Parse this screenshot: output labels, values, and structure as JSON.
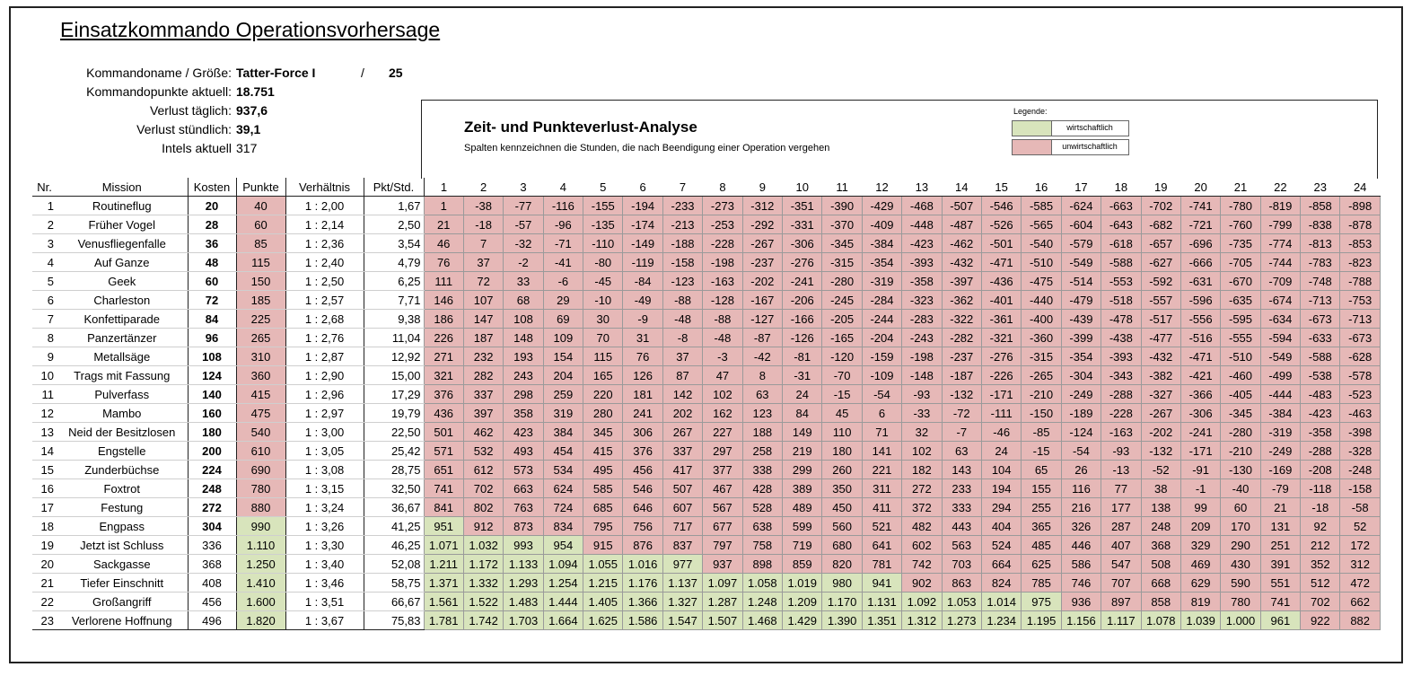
{
  "title": "Einsatzkommando Operationsvorhersage",
  "info": {
    "rows": [
      {
        "label": "Kommandoname / Größe:",
        "value": "Tatter-Force I"
      },
      {
        "label": "Kommandopunkte aktuell:",
        "value": "18.751"
      },
      {
        "label": "Verlust täglich:",
        "value": "937,6"
      },
      {
        "label": "Verlust stündlich:",
        "value": "39,1"
      },
      {
        "label": "Intels aktuell",
        "value": "317"
      }
    ],
    "slash": "/",
    "size": "25"
  },
  "analysis": {
    "title": "Zeit- und Punkteverlust-Analyse",
    "subtitle": "Spalten kennzeichnen die Stunden, die nach Beendigung einer Operation vergehen",
    "legend_title": "Legende:",
    "legend_items": [
      {
        "label": "wirtschaftlich",
        "color": "#d8e4bc"
      },
      {
        "label": "unwirtschaftlich",
        "color": "#e6b8b7"
      }
    ]
  },
  "colors": {
    "red": "#e6b8b7",
    "green": "#d8e4bc"
  },
  "table": {
    "headers": [
      "Nr.",
      "Mission",
      "Kosten",
      "Punkte",
      "Verhältnis",
      "Pkt/Std."
    ],
    "hours": [
      "1",
      "2",
      "3",
      "4",
      "5",
      "6",
      "7",
      "8",
      "9",
      "10",
      "11",
      "12",
      "13",
      "14",
      "15",
      "16",
      "17",
      "18",
      "19",
      "20",
      "21",
      "22",
      "23",
      "24"
    ],
    "rows": [
      {
        "nr": "1",
        "mission": "Routineflug",
        "kosten": "20",
        "punkte": "40",
        "verhaeltnis": "1 : 2,00",
        "pph": "1,67",
        "hours": [
          "1",
          "-38",
          "-77",
          "-116",
          "-155",
          "-194",
          "-233",
          "-273",
          "-312",
          "-351",
          "-390",
          "-429",
          "-468",
          "-507",
          "-546",
          "-585",
          "-624",
          "-663",
          "-702",
          "-741",
          "-780",
          "-819",
          "-858",
          "-898"
        ],
        "green_count": 0
      },
      {
        "nr": "2",
        "mission": "Früher Vogel",
        "kosten": "28",
        "punkte": "60",
        "verhaeltnis": "1 : 2,14",
        "pph": "2,50",
        "hours": [
          "21",
          "-18",
          "-57",
          "-96",
          "-135",
          "-174",
          "-213",
          "-253",
          "-292",
          "-331",
          "-370",
          "-409",
          "-448",
          "-487",
          "-526",
          "-565",
          "-604",
          "-643",
          "-682",
          "-721",
          "-760",
          "-799",
          "-838",
          "-878"
        ],
        "green_count": 0
      },
      {
        "nr": "3",
        "mission": "Venusfliegenfalle",
        "kosten": "36",
        "punkte": "85",
        "verhaeltnis": "1 : 2,36",
        "pph": "3,54",
        "hours": [
          "46",
          "7",
          "-32",
          "-71",
          "-110",
          "-149",
          "-188",
          "-228",
          "-267",
          "-306",
          "-345",
          "-384",
          "-423",
          "-462",
          "-501",
          "-540",
          "-579",
          "-618",
          "-657",
          "-696",
          "-735",
          "-774",
          "-813",
          "-853"
        ],
        "green_count": 0
      },
      {
        "nr": "4",
        "mission": "Auf Ganze",
        "kosten": "48",
        "punkte": "115",
        "verhaeltnis": "1 : 2,40",
        "pph": "4,79",
        "hours": [
          "76",
          "37",
          "-2",
          "-41",
          "-80",
          "-119",
          "-158",
          "-198",
          "-237",
          "-276",
          "-315",
          "-354",
          "-393",
          "-432",
          "-471",
          "-510",
          "-549",
          "-588",
          "-627",
          "-666",
          "-705",
          "-744",
          "-783",
          "-823"
        ],
        "green_count": 0
      },
      {
        "nr": "5",
        "mission": "Geek",
        "kosten": "60",
        "punkte": "150",
        "verhaeltnis": "1 : 2,50",
        "pph": "6,25",
        "hours": [
          "111",
          "72",
          "33",
          "-6",
          "-45",
          "-84",
          "-123",
          "-163",
          "-202",
          "-241",
          "-280",
          "-319",
          "-358",
          "-397",
          "-436",
          "-475",
          "-514",
          "-553",
          "-592",
          "-631",
          "-670",
          "-709",
          "-748",
          "-788"
        ],
        "green_count": 0
      },
      {
        "nr": "6",
        "mission": "Charleston",
        "kosten": "72",
        "punkte": "185",
        "verhaeltnis": "1 : 2,57",
        "pph": "7,71",
        "hours": [
          "146",
          "107",
          "68",
          "29",
          "-10",
          "-49",
          "-88",
          "-128",
          "-167",
          "-206",
          "-245",
          "-284",
          "-323",
          "-362",
          "-401",
          "-440",
          "-479",
          "-518",
          "-557",
          "-596",
          "-635",
          "-674",
          "-713",
          "-753"
        ],
        "green_count": 0
      },
      {
        "nr": "7",
        "mission": "Konfettiparade",
        "kosten": "84",
        "punkte": "225",
        "verhaeltnis": "1 : 2,68",
        "pph": "9,38",
        "hours": [
          "186",
          "147",
          "108",
          "69",
          "30",
          "-9",
          "-48",
          "-88",
          "-127",
          "-166",
          "-205",
          "-244",
          "-283",
          "-322",
          "-361",
          "-400",
          "-439",
          "-478",
          "-517",
          "-556",
          "-595",
          "-634",
          "-673",
          "-713"
        ],
        "green_count": 0
      },
      {
        "nr": "8",
        "mission": "Panzertänzer",
        "kosten": "96",
        "punkte": "265",
        "verhaeltnis": "1 : 2,76",
        "pph": "11,04",
        "hours": [
          "226",
          "187",
          "148",
          "109",
          "70",
          "31",
          "-8",
          "-48",
          "-87",
          "-126",
          "-165",
          "-204",
          "-243",
          "-282",
          "-321",
          "-360",
          "-399",
          "-438",
          "-477",
          "-516",
          "-555",
          "-594",
          "-633",
          "-673"
        ],
        "green_count": 0
      },
      {
        "nr": "9",
        "mission": "Metallsäge",
        "kosten": "108",
        "punkte": "310",
        "verhaeltnis": "1 : 2,87",
        "pph": "12,92",
        "hours": [
          "271",
          "232",
          "193",
          "154",
          "115",
          "76",
          "37",
          "-3",
          "-42",
          "-81",
          "-120",
          "-159",
          "-198",
          "-237",
          "-276",
          "-315",
          "-354",
          "-393",
          "-432",
          "-471",
          "-510",
          "-549",
          "-588",
          "-628"
        ],
        "green_count": 0
      },
      {
        "nr": "10",
        "mission": "Trags mit Fassung",
        "kosten": "124",
        "punkte": "360",
        "verhaeltnis": "1 : 2,90",
        "pph": "15,00",
        "hours": [
          "321",
          "282",
          "243",
          "204",
          "165",
          "126",
          "87",
          "47",
          "8",
          "-31",
          "-70",
          "-109",
          "-148",
          "-187",
          "-226",
          "-265",
          "-304",
          "-343",
          "-382",
          "-421",
          "-460",
          "-499",
          "-538",
          "-578"
        ],
        "green_count": 0
      },
      {
        "nr": "11",
        "mission": "Pulverfass",
        "kosten": "140",
        "punkte": "415",
        "verhaeltnis": "1 : 2,96",
        "pph": "17,29",
        "hours": [
          "376",
          "337",
          "298",
          "259",
          "220",
          "181",
          "142",
          "102",
          "63",
          "24",
          "-15",
          "-54",
          "-93",
          "-132",
          "-171",
          "-210",
          "-249",
          "-288",
          "-327",
          "-366",
          "-405",
          "-444",
          "-483",
          "-523"
        ],
        "green_count": 0
      },
      {
        "nr": "12",
        "mission": "Mambo",
        "kosten": "160",
        "punkte": "475",
        "verhaeltnis": "1 : 2,97",
        "pph": "19,79",
        "hours": [
          "436",
          "397",
          "358",
          "319",
          "280",
          "241",
          "202",
          "162",
          "123",
          "84",
          "45",
          "6",
          "-33",
          "-72",
          "-111",
          "-150",
          "-189",
          "-228",
          "-267",
          "-306",
          "-345",
          "-384",
          "-423",
          "-463"
        ],
        "green_count": 0
      },
      {
        "nr": "13",
        "mission": "Neid der Besitzlosen",
        "kosten": "180",
        "punkte": "540",
        "verhaeltnis": "1 : 3,00",
        "pph": "22,50",
        "hours": [
          "501",
          "462",
          "423",
          "384",
          "345",
          "306",
          "267",
          "227",
          "188",
          "149",
          "110",
          "71",
          "32",
          "-7",
          "-46",
          "-85",
          "-124",
          "-163",
          "-202",
          "-241",
          "-280",
          "-319",
          "-358",
          "-398"
        ],
        "green_count": 0
      },
      {
        "nr": "14",
        "mission": "Engstelle",
        "kosten": "200",
        "punkte": "610",
        "verhaeltnis": "1 : 3,05",
        "pph": "25,42",
        "hours": [
          "571",
          "532",
          "493",
          "454",
          "415",
          "376",
          "337",
          "297",
          "258",
          "219",
          "180",
          "141",
          "102",
          "63",
          "24",
          "-15",
          "-54",
          "-93",
          "-132",
          "-171",
          "-210",
          "-249",
          "-288",
          "-328"
        ],
        "green_count": 0
      },
      {
        "nr": "15",
        "mission": "Zunderbüchse",
        "kosten": "224",
        "punkte": "690",
        "verhaeltnis": "1 : 3,08",
        "pph": "28,75",
        "hours": [
          "651",
          "612",
          "573",
          "534",
          "495",
          "456",
          "417",
          "377",
          "338",
          "299",
          "260",
          "221",
          "182",
          "143",
          "104",
          "65",
          "26",
          "-13",
          "-52",
          "-91",
          "-130",
          "-169",
          "-208",
          "-248"
        ],
        "green_count": 0
      },
      {
        "nr": "16",
        "mission": "Foxtrot",
        "kosten": "248",
        "punkte": "780",
        "verhaeltnis": "1 : 3,15",
        "pph": "32,50",
        "hours": [
          "741",
          "702",
          "663",
          "624",
          "585",
          "546",
          "507",
          "467",
          "428",
          "389",
          "350",
          "311",
          "272",
          "233",
          "194",
          "155",
          "116",
          "77",
          "38",
          "-1",
          "-40",
          "-79",
          "-118",
          "-158"
        ],
        "green_count": 0
      },
      {
        "nr": "17",
        "mission": "Festung",
        "kosten": "272",
        "punkte": "880",
        "verhaeltnis": "1 : 3,24",
        "pph": "36,67",
        "hours": [
          "841",
          "802",
          "763",
          "724",
          "685",
          "646",
          "607",
          "567",
          "528",
          "489",
          "450",
          "411",
          "372",
          "333",
          "294",
          "255",
          "216",
          "177",
          "138",
          "99",
          "60",
          "21",
          "-18",
          "-58"
        ],
        "green_count": 0
      },
      {
        "nr": "18",
        "mission": "Engpass",
        "kosten": "304",
        "punkte": "990",
        "verhaeltnis": "1 : 3,26",
        "pph": "41,25",
        "hours": [
          "951",
          "912",
          "873",
          "834",
          "795",
          "756",
          "717",
          "677",
          "638",
          "599",
          "560",
          "521",
          "482",
          "443",
          "404",
          "365",
          "326",
          "287",
          "248",
          "209",
          "170",
          "131",
          "92",
          "52"
        ],
        "green_count": 1
      },
      {
        "nr": "19",
        "mission": "Jetzt ist Schluss",
        "kosten": "336",
        "punkte": "1.110",
        "verhaeltnis": "1 : 3,30",
        "pph": "46,25",
        "hours": [
          "1.071",
          "1.032",
          "993",
          "954",
          "915",
          "876",
          "837",
          "797",
          "758",
          "719",
          "680",
          "641",
          "602",
          "563",
          "524",
          "485",
          "446",
          "407",
          "368",
          "329",
          "290",
          "251",
          "212",
          "172"
        ],
        "green_count": 4
      },
      {
        "nr": "20",
        "mission": "Sackgasse",
        "kosten": "368",
        "punkte": "1.250",
        "verhaeltnis": "1 : 3,40",
        "pph": "52,08",
        "hours": [
          "1.211",
          "1.172",
          "1.133",
          "1.094",
          "1.055",
          "1.016",
          "977",
          "937",
          "898",
          "859",
          "820",
          "781",
          "742",
          "703",
          "664",
          "625",
          "586",
          "547",
          "508",
          "469",
          "430",
          "391",
          "352",
          "312"
        ],
        "green_count": 7
      },
      {
        "nr": "21",
        "mission": "Tiefer Einschnitt",
        "kosten": "408",
        "punkte": "1.410",
        "verhaeltnis": "1 : 3,46",
        "pph": "58,75",
        "hours": [
          "1.371",
          "1.332",
          "1.293",
          "1.254",
          "1.215",
          "1.176",
          "1.137",
          "1.097",
          "1.058",
          "1.019",
          "980",
          "941",
          "902",
          "863",
          "824",
          "785",
          "746",
          "707",
          "668",
          "629",
          "590",
          "551",
          "512",
          "472"
        ],
        "green_count": 12
      },
      {
        "nr": "22",
        "mission": "Großangriff",
        "kosten": "456",
        "punkte": "1.600",
        "verhaeltnis": "1 : 3,51",
        "pph": "66,67",
        "hours": [
          "1.561",
          "1.522",
          "1.483",
          "1.444",
          "1.405",
          "1.366",
          "1.327",
          "1.287",
          "1.248",
          "1.209",
          "1.170",
          "1.131",
          "1.092",
          "1.053",
          "1.014",
          "975",
          "936",
          "897",
          "858",
          "819",
          "780",
          "741",
          "702",
          "662"
        ],
        "green_count": 16
      },
      {
        "nr": "23",
        "mission": "Verlorene Hoffnung",
        "kosten": "496",
        "punkte": "1.820",
        "verhaeltnis": "1 : 3,67",
        "pph": "75,83",
        "hours": [
          "1.781",
          "1.742",
          "1.703",
          "1.664",
          "1.625",
          "1.586",
          "1.547",
          "1.507",
          "1.468",
          "1.429",
          "1.390",
          "1.351",
          "1.312",
          "1.273",
          "1.234",
          "1.195",
          "1.156",
          "1.117",
          "1.078",
          "1.039",
          "1.000",
          "961",
          "922",
          "882"
        ],
        "green_count": 22
      }
    ]
  }
}
